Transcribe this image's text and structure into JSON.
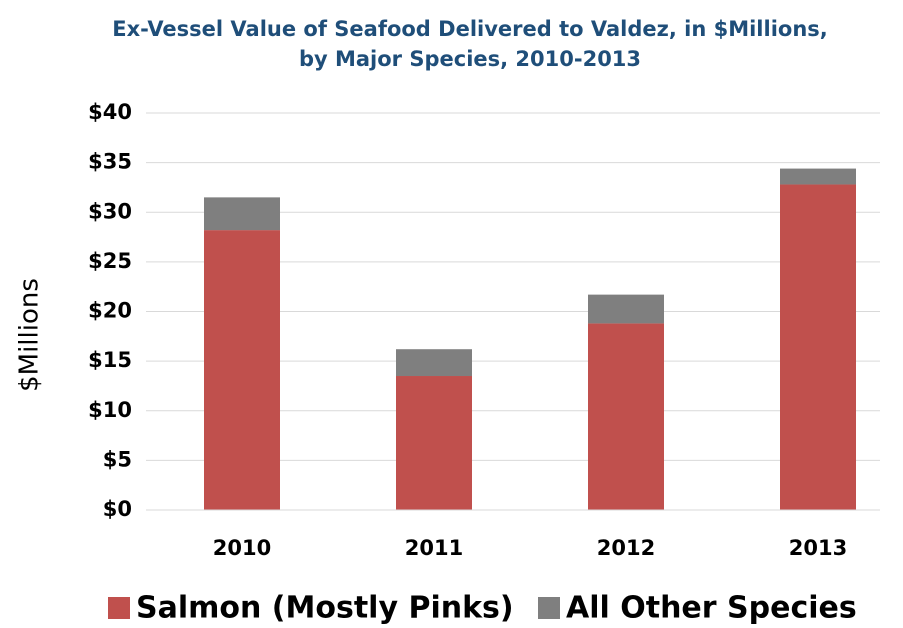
{
  "chart_data": {
    "type": "stacked_bar",
    "title": [
      "Ex-Vessel Value of Seafood Delivered to Valdez, in $Millions,",
      "by Major Species, 2010-2013"
    ],
    "y_label": "$Millions",
    "categories": [
      "2010",
      "2011",
      "2012",
      "2013"
    ],
    "series": [
      {
        "name": "Salmon (Mostly Pinks)",
        "color": "#c0504d",
        "values": [
          28.2,
          13.5,
          18.8,
          32.8
        ]
      },
      {
        "name": "All Other Species",
        "color": "#7f7f7f",
        "values": [
          3.3,
          2.7,
          2.9,
          1.6
        ]
      }
    ],
    "ylim": [
      0,
      40
    ],
    "yticks": [
      {
        "value": 0,
        "label": "$0"
      },
      {
        "value": 5,
        "label": "$5"
      },
      {
        "value": 10,
        "label": "$10"
      },
      {
        "value": 15,
        "label": "$15"
      },
      {
        "value": 20,
        "label": "$20"
      },
      {
        "value": 25,
        "label": "$25"
      },
      {
        "value": 30,
        "label": "$30"
      },
      {
        "value": 35,
        "label": "$35"
      },
      {
        "value": 40,
        "label": "$40"
      }
    ],
    "grid": true,
    "legend": "bottom"
  }
}
